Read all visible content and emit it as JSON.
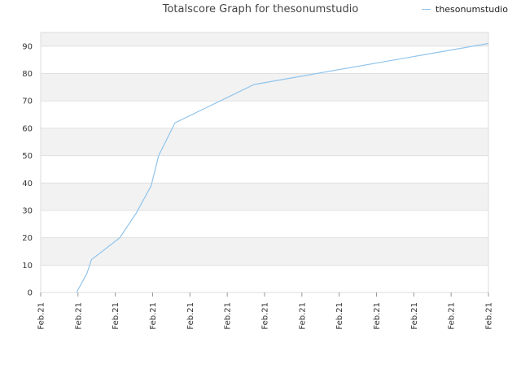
{
  "chart_data": {
    "type": "line",
    "title": "Totalscore Graph for thesonumstudio",
    "xlabel": "",
    "ylabel": "",
    "ylim": [
      0,
      95
    ],
    "y_ticks": [
      0,
      10,
      20,
      30,
      40,
      50,
      60,
      70,
      80,
      90
    ],
    "x_tick_labels": [
      "Feb.21",
      "Feb.21",
      "Feb.21",
      "Feb.21",
      "Feb.21",
      "Feb.21",
      "Feb.21",
      "Feb.21",
      "Feb.21",
      "Feb.21",
      "Feb.21",
      "Feb.21",
      "Feb.21"
    ],
    "grid": true,
    "legend_position": "top-right",
    "colors": {
      "line": "#90c4ec",
      "band": "#f2f2f2",
      "grid": "#e0e0e0"
    },
    "series": [
      {
        "name": "thesonumstudio",
        "x": [
          0.96,
          1.24,
          1.36,
          2.12,
          2.56,
          2.96,
          3.16,
          3.6,
          5.72,
          12.0
        ],
        "values": [
          0,
          7,
          12,
          20,
          29,
          39,
          50,
          62,
          76,
          91
        ]
      }
    ]
  }
}
